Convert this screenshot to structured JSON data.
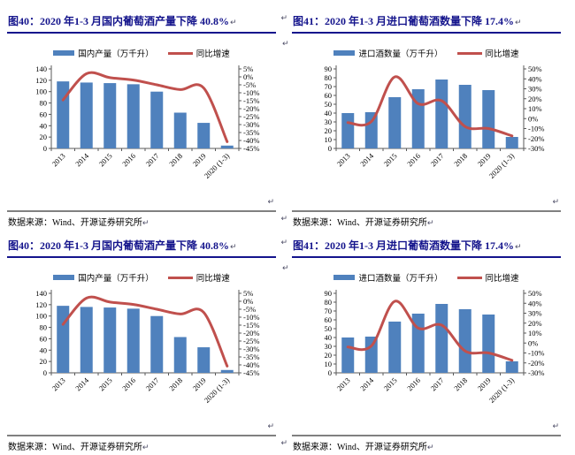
{
  "page": {
    "background": "#ffffff",
    "return_mark": "↵",
    "title_color": "#14148C",
    "bar_color": "#4F81BD",
    "line_color": "#C0504D"
  },
  "layout": {
    "rows": 2,
    "cells": [
      0,
      1,
      0,
      1
    ]
  },
  "chart_data": [
    {
      "id": "fig40",
      "type": "bar+line",
      "title": "图40：2020 年1-3 月国内葡萄酒产量下降 40.8%",
      "categories": [
        "2013",
        "2014",
        "2015",
        "2016",
        "2017",
        "2018",
        "2019",
        "2020 (1-3)"
      ],
      "series": [
        {
          "name": "国内产量（万千升）",
          "type": "bar",
          "axis": "left",
          "color": "#4F81BD",
          "values": [
            118,
            116,
            115,
            113,
            100,
            63,
            45,
            5
          ]
        },
        {
          "name": "同比增速",
          "type": "line",
          "axis": "right",
          "color": "#C0504D",
          "values": [
            -14.5,
            2,
            -0.5,
            -2,
            -5,
            -8,
            -7,
            -40.8
          ]
        }
      ],
      "left_axis": {
        "min": 0,
        "max": 140,
        "step": 20
      },
      "right_axis": {
        "min": -45,
        "max": 5,
        "step": 5,
        "suffix": "%"
      },
      "legend_position": "top",
      "grid": false,
      "source": "数据来源：Wind、开源证券研究所"
    },
    {
      "id": "fig41",
      "type": "bar+line",
      "title": "图41：2020 年1-3 月进口葡萄酒数量下降 17.4%",
      "categories": [
        "2013",
        "2014",
        "2015",
        "2016",
        "2017",
        "2018",
        "2019",
        "2020 (1-3)"
      ],
      "series": [
        {
          "name": "进口酒数量（万千升）",
          "type": "bar",
          "axis": "left",
          "color": "#4F81BD",
          "values": [
            40,
            41,
            58,
            67,
            78,
            72,
            66,
            13
          ]
        },
        {
          "name": "同比增速",
          "type": "line",
          "axis": "right",
          "color": "#C0504D",
          "values": [
            -4,
            -3,
            42,
            15,
            18,
            -8,
            -10,
            -17.4
          ]
        }
      ],
      "left_axis": {
        "min": 0,
        "max": 90,
        "step": 10
      },
      "right_axis": {
        "min": -30,
        "max": 50,
        "step": 10,
        "suffix": "%"
      },
      "legend_position": "top",
      "grid": false,
      "source": "数据来源：Wind、开源证券研究所"
    }
  ]
}
